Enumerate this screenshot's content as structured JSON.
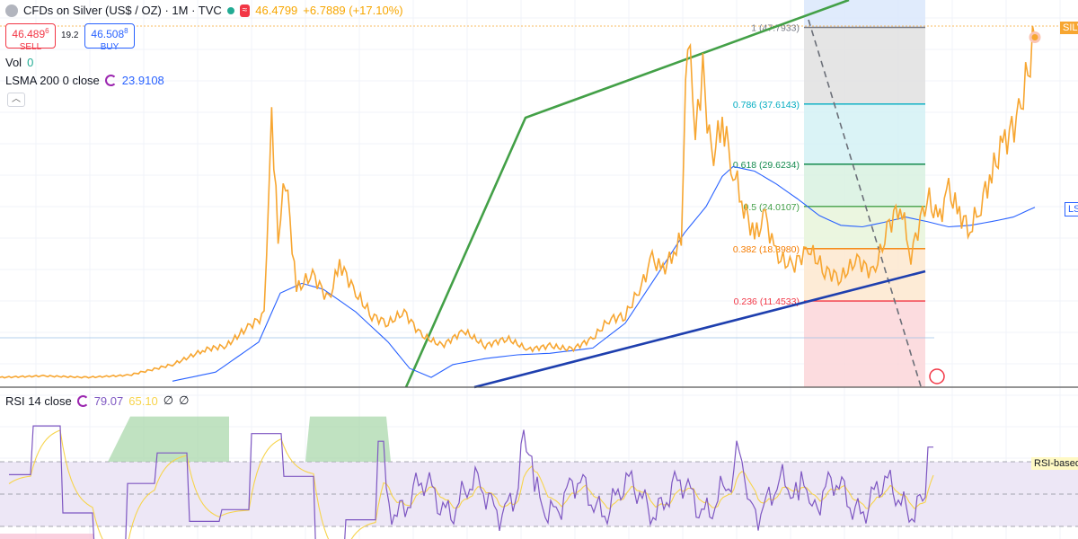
{
  "header": {
    "symbol_title": "CFDs on Silver (US$ / OZ) · 1M · TVC",
    "approx_badge": "≈",
    "last_price": "46.4799",
    "change": "+6.7889 (+17.10%)",
    "sell_price": "46.489",
    "sell_price_sup": "6",
    "sell_label": "SELL",
    "spread": "19.2",
    "buy_price": "46.508",
    "buy_price_sup": "8",
    "buy_label": "BUY"
  },
  "indicators": {
    "vol_label": "Vol",
    "vol_value": "0",
    "lsma_label": "LSMA 200 0 close",
    "lsma_value": "23.9108",
    "collapse_icon": "chevron-up-icon",
    "rsi_label": "RSI 14 close",
    "rsi_value": "79.07",
    "rsi_ma_value": "65.10",
    "rsi_null1": "∅",
    "rsi_null2": "∅"
  },
  "right_labels": {
    "silver_tag": "SILV",
    "lsma_tag": "LS",
    "rsi_band_tag": "RSI-based"
  },
  "colors": {
    "price_line": "#f7a631",
    "lsma_line": "#2962ff",
    "trend_green": "#43a047",
    "trend_blue": "#1e3fae",
    "rsi_line": "#7e57c2",
    "rsi_ma": "#f7d44c",
    "rsi_band": "#ede7f6"
  },
  "chart_data": {
    "type": "line",
    "series": [
      {
        "name": "CFDs on Silver (US$ / OZ)",
        "values": [
          {
            "x": 0.0,
            "y": 1.3
          },
          {
            "x": 0.04,
            "y": 1.5
          },
          {
            "x": 0.08,
            "y": 1.3
          },
          {
            "x": 0.12,
            "y": 1.6
          },
          {
            "x": 0.16,
            "y": 3.0
          },
          {
            "x": 0.19,
            "y": 5.0
          },
          {
            "x": 0.21,
            "y": 5.5
          },
          {
            "x": 0.23,
            "y": 8.0
          },
          {
            "x": 0.245,
            "y": 9.5
          },
          {
            "x": 0.252,
            "y": 36.5
          },
          {
            "x": 0.258,
            "y": 20.0
          },
          {
            "x": 0.265,
            "y": 28.0
          },
          {
            "x": 0.275,
            "y": 13.0
          },
          {
            "x": 0.29,
            "y": 15.0
          },
          {
            "x": 0.305,
            "y": 11.5
          },
          {
            "x": 0.315,
            "y": 16.5
          },
          {
            "x": 0.33,
            "y": 12.5
          },
          {
            "x": 0.345,
            "y": 9.5
          },
          {
            "x": 0.36,
            "y": 8.5
          },
          {
            "x": 0.375,
            "y": 10.0
          },
          {
            "x": 0.39,
            "y": 7.0
          },
          {
            "x": 0.41,
            "y": 5.5
          },
          {
            "x": 0.43,
            "y": 7.5
          },
          {
            "x": 0.45,
            "y": 5.5
          },
          {
            "x": 0.47,
            "y": 6.5
          },
          {
            "x": 0.49,
            "y": 5.0
          },
          {
            "x": 0.51,
            "y": 5.5
          },
          {
            "x": 0.53,
            "y": 5.0
          },
          {
            "x": 0.55,
            "y": 6.5
          },
          {
            "x": 0.565,
            "y": 9.0
          },
          {
            "x": 0.58,
            "y": 9.5
          },
          {
            "x": 0.595,
            "y": 13.5
          },
          {
            "x": 0.605,
            "y": 17.0
          },
          {
            "x": 0.615,
            "y": 15.5
          },
          {
            "x": 0.625,
            "y": 18.0
          },
          {
            "x": 0.632,
            "y": 20.0
          },
          {
            "x": 0.638,
            "y": 47.8
          },
          {
            "x": 0.645,
            "y": 33.0
          },
          {
            "x": 0.652,
            "y": 42.0
          },
          {
            "x": 0.66,
            "y": 30.0
          },
          {
            "x": 0.67,
            "y": 35.5
          },
          {
            "x": 0.68,
            "y": 29.0
          },
          {
            "x": 0.69,
            "y": 24.0
          },
          {
            "x": 0.7,
            "y": 20.0
          },
          {
            "x": 0.71,
            "y": 22.5
          },
          {
            "x": 0.72,
            "y": 17.5
          },
          {
            "x": 0.735,
            "y": 16.0
          },
          {
            "x": 0.75,
            "y": 18.5
          },
          {
            "x": 0.765,
            "y": 15.5
          },
          {
            "x": 0.78,
            "y": 14.5
          },
          {
            "x": 0.795,
            "y": 17.0
          },
          {
            "x": 0.81,
            "y": 15.0
          },
          {
            "x": 0.825,
            "y": 21.5
          },
          {
            "x": 0.835,
            "y": 24.5
          },
          {
            "x": 0.845,
            "y": 17.5
          },
          {
            "x": 0.86,
            "y": 25.5
          },
          {
            "x": 0.87,
            "y": 22.0
          },
          {
            "x": 0.88,
            "y": 26.0
          },
          {
            "x": 0.89,
            "y": 23.0
          },
          {
            "x": 0.9,
            "y": 21.0
          },
          {
            "x": 0.91,
            "y": 24.5
          },
          {
            "x": 0.92,
            "y": 28.5
          },
          {
            "x": 0.93,
            "y": 32.0
          },
          {
            "x": 0.945,
            "y": 36.0
          },
          {
            "x": 0.96,
            "y": 46.48
          }
        ]
      },
      {
        "name": "LSMA 200 0 close",
        "values": [
          {
            "x": 0.16,
            "y": 0.8
          },
          {
            "x": 0.2,
            "y": 2.0
          },
          {
            "x": 0.24,
            "y": 6.0
          },
          {
            "x": 0.26,
            "y": 12.5
          },
          {
            "x": 0.28,
            "y": 13.8
          },
          {
            "x": 0.3,
            "y": 13.0
          },
          {
            "x": 0.33,
            "y": 10.0
          },
          {
            "x": 0.36,
            "y": 6.0
          },
          {
            "x": 0.38,
            "y": 2.5
          },
          {
            "x": 0.4,
            "y": 1.3
          },
          {
            "x": 0.42,
            "y": 3.0
          },
          {
            "x": 0.45,
            "y": 3.8
          },
          {
            "x": 0.48,
            "y": 4.3
          },
          {
            "x": 0.51,
            "y": 4.5
          },
          {
            "x": 0.55,
            "y": 5.2
          },
          {
            "x": 0.58,
            "y": 8.5
          },
          {
            "x": 0.61,
            "y": 15.0
          },
          {
            "x": 0.635,
            "y": 20.5
          },
          {
            "x": 0.655,
            "y": 24.0
          },
          {
            "x": 0.67,
            "y": 28.0
          },
          {
            "x": 0.68,
            "y": 29.3
          },
          {
            "x": 0.7,
            "y": 28.7
          },
          {
            "x": 0.72,
            "y": 27.0
          },
          {
            "x": 0.74,
            "y": 25.0
          },
          {
            "x": 0.76,
            "y": 22.8
          },
          {
            "x": 0.78,
            "y": 21.5
          },
          {
            "x": 0.8,
            "y": 21.3
          },
          {
            "x": 0.82,
            "y": 21.9
          },
          {
            "x": 0.84,
            "y": 22.6
          },
          {
            "x": 0.86,
            "y": 22.0
          },
          {
            "x": 0.88,
            "y": 21.3
          },
          {
            "x": 0.9,
            "y": 21.5
          },
          {
            "x": 0.92,
            "y": 22.0
          },
          {
            "x": 0.94,
            "y": 22.6
          },
          {
            "x": 0.96,
            "y": 23.9
          }
        ]
      }
    ],
    "fibonacci": [
      {
        "level": "1",
        "value": "47.7933",
        "y": 47.7933,
        "color": "#787b86"
      },
      {
        "level": "0.786",
        "value": "37.6143",
        "y": 37.6143,
        "color": "#00acc1"
      },
      {
        "level": "0.618",
        "value": "29.6234",
        "y": 29.6234,
        "color": "#138a4e"
      },
      {
        "level": "0.5",
        "value": "24.0107",
        "y": 24.0107,
        "color": "#43a047"
      },
      {
        "level": "0.382",
        "value": "18.3980",
        "y": 18.398,
        "color": "#f57c00"
      },
      {
        "level": "0.236",
        "value": "11.4533",
        "y": 11.4533,
        "color": "#f23645"
      }
    ],
    "rsi": {
      "name": "RSI 14 close",
      "upper_band": 70,
      "middle_band": 50,
      "lower_band": 30,
      "last": 79.07,
      "ma_last": 65.1
    },
    "ylim": [
      0,
      50
    ],
    "xlim": [
      0,
      1
    ],
    "grid": true,
    "legend": "top-left"
  }
}
